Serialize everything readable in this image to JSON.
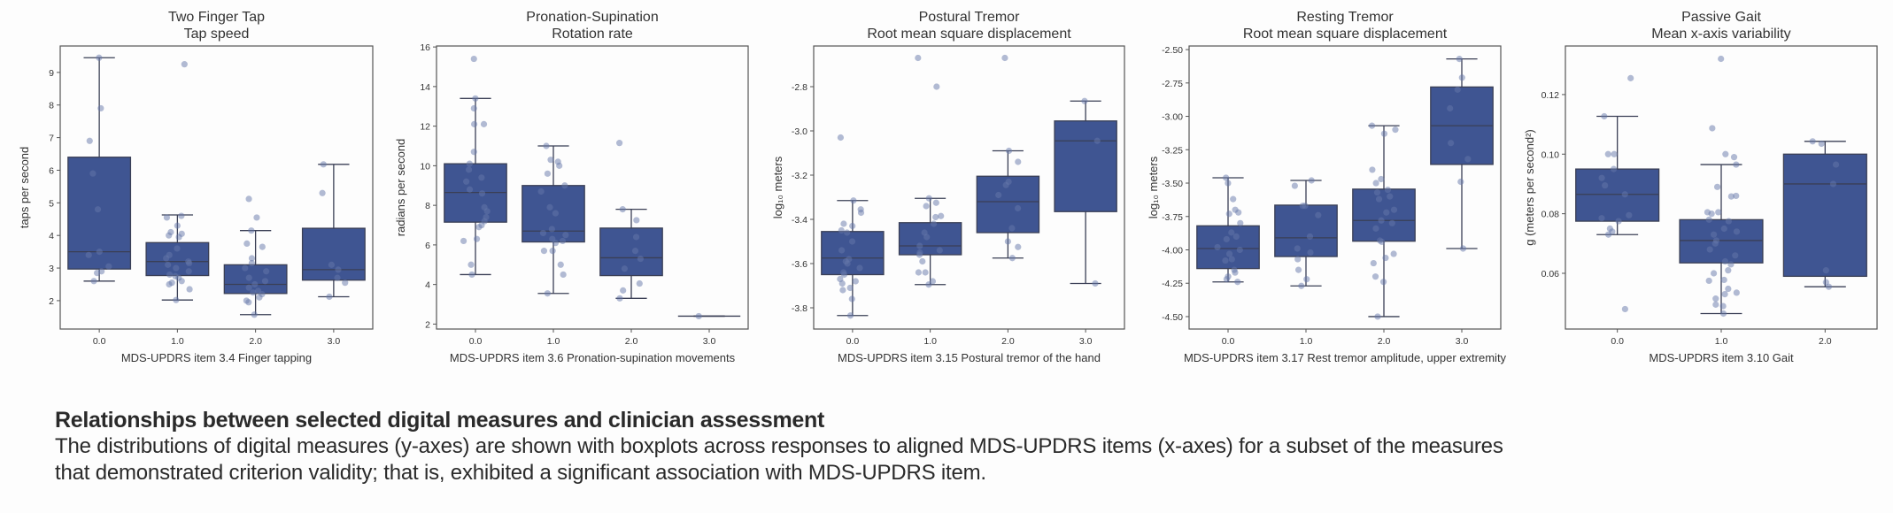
{
  "colors": {
    "box": "#3f5592",
    "box_edge": "#3a3f55",
    "point": "#6677aa",
    "axis": "#555555"
  },
  "chart_data": [
    {
      "type": "box",
      "title": [
        "Two Finger Tap",
        "Tap speed"
      ],
      "xlabel": "MDS-UPDRS item 3.4 Finger tapping",
      "ylabel": "taps per second",
      "categories": [
        "0.0",
        "1.0",
        "2.0",
        "3.0"
      ],
      "ylim": [
        1.13,
        9.81
      ],
      "yticks": [
        2,
        3,
        4,
        5,
        6,
        7,
        8,
        9
      ],
      "ytick_labels": [
        "2",
        "3",
        "4",
        "5",
        "6",
        "7",
        "8",
        "9"
      ],
      "boxes": [
        {
          "whislo": 2.6,
          "q1": 2.97,
          "med": 3.5,
          "q3": 6.4,
          "whishi": 9.45,
          "points": [
            9.45,
            7.9,
            6.9,
            5.9,
            4.8,
            3.5,
            3.4,
            3.05,
            2.9,
            2.85,
            2.6
          ]
        },
        {
          "whislo": 2.02,
          "q1": 2.77,
          "med": 3.2,
          "q3": 3.78,
          "whishi": 4.63,
          "points": [
            9.25,
            4.6,
            4.55,
            4.3,
            4.1,
            4.05,
            4.0,
            3.95,
            3.6,
            3.4,
            3.3,
            3.2,
            3.15,
            3.1,
            3.0,
            2.9,
            2.8,
            2.75,
            2.7,
            2.6,
            2.55,
            2.5,
            2.35,
            2.02
          ]
        },
        {
          "whislo": 1.57,
          "q1": 2.22,
          "med": 2.5,
          "q3": 3.1,
          "whishi": 4.15,
          "points": [
            5.12,
            4.55,
            4.15,
            3.75,
            3.65,
            3.3,
            3.15,
            3.0,
            2.9,
            2.7,
            2.6,
            2.5,
            2.4,
            2.3,
            2.25,
            2.2,
            2.1,
            2.0,
            1.95,
            1.57
          ]
        },
        {
          "whislo": 2.12,
          "q1": 2.63,
          "med": 2.95,
          "q3": 4.22,
          "whishi": 6.18,
          "points": [
            6.18,
            5.3,
            3.1,
            2.95,
            2.7,
            2.55,
            2.12
          ]
        }
      ]
    },
    {
      "type": "box",
      "title": [
        "Pronation-Supination",
        "Rotation rate"
      ],
      "xlabel": "MDS-UPDRS item 3.6 Pronation-supination movements",
      "ylabel": "radians per second",
      "categories": [
        "0.0",
        "1.0",
        "2.0",
        "3.0"
      ],
      "ylim": [
        1.75,
        16.05
      ],
      "yticks": [
        2,
        4,
        6,
        8,
        10,
        12,
        14,
        16
      ],
      "ytick_labels": [
        "2",
        "4",
        "6",
        "8",
        "10",
        "12",
        "14",
        "16"
      ],
      "boxes": [
        {
          "whislo": 4.5,
          "q1": 7.15,
          "med": 8.65,
          "q3": 10.1,
          "whishi": 13.4,
          "points": [
            15.4,
            13.4,
            12.9,
            12.1,
            12.1,
            10.7,
            10.1,
            9.8,
            9.4,
            9.2,
            8.8,
            8.6,
            7.9,
            7.7,
            7.4,
            7.2,
            7.0,
            6.9,
            6.3,
            6.2,
            5.0,
            4.5
          ]
        },
        {
          "whislo": 3.55,
          "q1": 6.15,
          "med": 6.7,
          "q3": 9.0,
          "whishi": 11.0,
          "points": [
            11.0,
            10.3,
            10.2,
            10.0,
            9.6,
            9.0,
            8.7,
            7.9,
            7.6,
            6.8,
            6.6,
            6.5,
            6.3,
            6.2,
            6.1,
            5.7,
            5.7,
            5.0,
            4.5,
            3.55
          ]
        },
        {
          "whislo": 3.3,
          "q1": 4.45,
          "med": 5.35,
          "q3": 6.85,
          "whishi": 7.8,
          "points": [
            11.15,
            7.8,
            7.25,
            6.4,
            5.7,
            5.3,
            4.8,
            4.05,
            3.7,
            3.3
          ]
        },
        {
          "whislo": 2.4,
          "q1": 2.4,
          "med": 2.4,
          "q3": 2.4,
          "whishi": 2.4,
          "points": [
            2.4
          ]
        }
      ]
    },
    {
      "type": "box",
      "title": [
        "Postural Tremor",
        "Root mean square displacement"
      ],
      "xlabel": "MDS-UPDRS item 3.15 Postural tremor of the hand",
      "ylabel": "log₁₀ meters",
      "categories": [
        "0.0",
        "1.0",
        "2.0",
        "3.0"
      ],
      "ylim": [
        -3.896,
        -2.616
      ],
      "yticks": [
        -3.8,
        -3.6,
        -3.4,
        -3.2,
        -3.0,
        -2.8
      ],
      "ytick_labels": [
        "-3.8",
        "-3.6",
        "-3.4",
        "-3.2",
        "-3.0",
        "-2.8"
      ],
      "boxes": [
        {
          "whislo": -3.835,
          "q1": -3.65,
          "med": -3.575,
          "q3": -3.455,
          "whishi": -3.315,
          "points": [
            -3.03,
            -3.315,
            -3.355,
            -3.37,
            -3.42,
            -3.43,
            -3.45,
            -3.46,
            -3.5,
            -3.54,
            -3.58,
            -3.59,
            -3.6,
            -3.62,
            -3.64,
            -3.65,
            -3.67,
            -3.68,
            -3.69,
            -3.71,
            -3.72,
            -3.76,
            -3.835
          ]
        },
        {
          "whislo": -3.695,
          "q1": -3.56,
          "med": -3.52,
          "q3": -3.415,
          "whishi": -3.305,
          "points": [
            -2.67,
            -2.8,
            -3.305,
            -3.325,
            -3.34,
            -3.385,
            -3.39,
            -3.42,
            -3.46,
            -3.48,
            -3.52,
            -3.54,
            -3.55,
            -3.56,
            -3.59,
            -3.64,
            -3.64,
            -3.68,
            -3.695
          ]
        },
        {
          "whislo": -3.575,
          "q1": -3.46,
          "med": -3.32,
          "q3": -3.205,
          "whishi": -3.09,
          "points": [
            -2.67,
            -3.09,
            -3.14,
            -3.23,
            -3.245,
            -3.29,
            -3.35,
            -3.44,
            -3.5,
            -3.525,
            -3.575
          ]
        },
        {
          "whislo": -3.69,
          "q1": -3.365,
          "med": -3.045,
          "q3": -2.955,
          "whishi": -2.865,
          "points": [
            -2.865,
            -3.045,
            -3.69
          ]
        }
      ]
    },
    {
      "type": "box",
      "title": [
        "Resting Tremor",
        "Root mean square displacement"
      ],
      "xlabel": "MDS-UPDRS item 3.17 Rest tremor amplitude, upper extremity",
      "ylabel": "log₁₀ meters",
      "categories": [
        "0.0",
        "1.0",
        "2.0",
        "3.0"
      ],
      "ylim": [
        -4.593,
        -2.473
      ],
      "yticks": [
        -4.5,
        -4.25,
        -4.0,
        -3.75,
        -3.5,
        -3.25,
        -3.0,
        -2.75,
        -2.5
      ],
      "ytick_labels": [
        "-4.50",
        "-4.25",
        "-4.00",
        "-3.75",
        "-3.50",
        "-3.25",
        "-3.00",
        "-2.75",
        "-2.50"
      ],
      "boxes": [
        {
          "whislo": -4.24,
          "q1": -4.14,
          "med": -3.99,
          "q3": -3.82,
          "whishi": -3.46,
          "points": [
            -3.46,
            -3.5,
            -3.62,
            -3.7,
            -3.72,
            -3.73,
            -3.8,
            -3.87,
            -3.9,
            -3.92,
            -3.98,
            -4.0,
            -4.03,
            -4.07,
            -4.08,
            -4.15,
            -4.17,
            -4.2,
            -4.22,
            -4.24
          ]
        },
        {
          "whislo": -4.27,
          "q1": -4.05,
          "med": -3.91,
          "q3": -3.665,
          "whishi": -3.48,
          "points": [
            -3.48,
            -3.52,
            -3.67,
            -3.67,
            -3.74,
            -3.9,
            -3.99,
            -4.02,
            -4.07,
            -4.15,
            -4.22,
            -4.27
          ]
        },
        {
          "whislo": -4.5,
          "q1": -3.935,
          "med": -3.78,
          "q3": -3.545,
          "whishi": -3.07,
          "points": [
            -3.07,
            -3.1,
            -3.13,
            -3.4,
            -3.47,
            -3.5,
            -3.55,
            -3.57,
            -3.6,
            -3.62,
            -3.7,
            -3.72,
            -3.78,
            -3.8,
            -3.84,
            -3.93,
            -3.94,
            -4.03,
            -4.06,
            -4.1,
            -4.2,
            -4.24,
            -4.5
          ]
        },
        {
          "whislo": -3.99,
          "q1": -3.36,
          "med": -3.07,
          "q3": -2.78,
          "whishi": -2.57,
          "points": [
            -2.57,
            -2.71,
            -2.8,
            -2.94,
            -3.2,
            -3.32,
            -3.49,
            -3.99
          ]
        }
      ]
    },
    {
      "type": "box",
      "title": [
        "Passive Gait",
        "Mean x-axis variability"
      ],
      "xlabel": "MDS-UPDRS item 3.10 Gait",
      "ylabel": "g (meters per second²)",
      "categories": [
        "0.0",
        "1.0",
        "2.0"
      ],
      "ylim": [
        0.0413,
        0.1363
      ],
      "yticks": [
        0.06,
        0.08,
        0.1,
        0.12
      ],
      "ytick_labels": [
        "0.06",
        "0.08",
        "0.10",
        "0.12"
      ],
      "boxes": [
        {
          "whislo": 0.073,
          "q1": 0.0775,
          "med": 0.0865,
          "q3": 0.095,
          "whishi": 0.1127,
          "points": [
            0.1255,
            0.1127,
            0.1,
            0.1,
            0.095,
            0.092,
            0.0895,
            0.0865,
            0.0795,
            0.0785,
            0.0775,
            0.075,
            0.074,
            0.073,
            0.048
          ]
        },
        {
          "whislo": 0.0465,
          "q1": 0.0635,
          "med": 0.071,
          "q3": 0.078,
          "whishi": 0.0965,
          "points": [
            0.132,
            0.1087,
            0.1,
            0.099,
            0.0965,
            0.089,
            0.086,
            0.0858,
            0.0805,
            0.0805,
            0.08,
            0.078,
            0.0775,
            0.075,
            0.074,
            0.073,
            0.071,
            0.07,
            0.068,
            0.066,
            0.064,
            0.063,
            0.061,
            0.06,
            0.0578,
            0.0575,
            0.0548,
            0.0535,
            0.053,
            0.0515,
            0.0495,
            0.049,
            0.0465
          ]
        },
        {
          "whislo": 0.0555,
          "q1": 0.059,
          "med": 0.09,
          "q3": 0.1,
          "whishi": 0.1043,
          "points": [
            0.1043,
            0.1035,
            0.0965,
            0.09,
            0.061,
            0.057,
            0.0555
          ]
        }
      ]
    }
  ],
  "caption": {
    "title": "Relationships between selected digital measures and clinician assessment",
    "body_line1": "The distributions of digital measures (y-axes) are shown with boxplots across responses to aligned MDS-UPDRS items (x-axes) for a subset of the measures",
    "body_line2": "that demonstrated criterion validity; that is, exhibited a significant association with MDS-UPDRS item."
  }
}
